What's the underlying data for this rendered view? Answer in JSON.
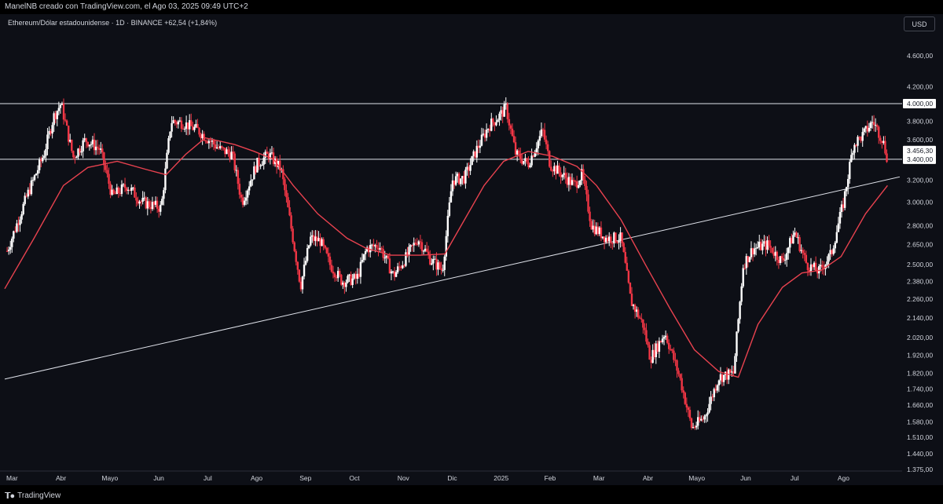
{
  "header": {
    "credit": "ManelNB creado con TradingView.com, el Ago 03, 2025 09:49 UTC+2"
  },
  "symbol": {
    "legend": "Ethereum/Dólar estadounidense · 1D · BINANCE  +62,54 (+1,84%)"
  },
  "currency_button": "USD",
  "footer": {
    "brand": "TradingView"
  },
  "colors": {
    "up": "#ffffff",
    "down": "#f23645",
    "ma": "#e8424f",
    "lines": "#e0e3eb",
    "bg": "#0d0f16"
  },
  "chart_data": {
    "type": "candlestick",
    "title": "",
    "xlabel": "",
    "ylabel": "",
    "x_ticks": [
      {
        "label": "Mar",
        "t": 0.05
      },
      {
        "label": "Abr",
        "t": 1.05
      },
      {
        "label": "Mayo",
        "t": 2.05
      },
      {
        "label": "Jun",
        "t": 3.05
      },
      {
        "label": "Jul",
        "t": 4.05
      },
      {
        "label": "Ago",
        "t": 5.05
      },
      {
        "label": "Sep",
        "t": 6.05
      },
      {
        "label": "Oct",
        "t": 7.05
      },
      {
        "label": "Nov",
        "t": 8.05
      },
      {
        "label": "Dic",
        "t": 9.05
      },
      {
        "label": "2025",
        "t": 10.05
      },
      {
        "label": "Feb",
        "t": 11.05
      },
      {
        "label": "Mar",
        "t": 12.05
      },
      {
        "label": "Abr",
        "t": 13.05
      },
      {
        "label": "Mayo",
        "t": 14.05
      },
      {
        "label": "Jun",
        "t": 15.05
      },
      {
        "label": "Jul",
        "t": 16.05
      },
      {
        "label": "Ago",
        "t": 17.05
      }
    ],
    "y_ticks": [
      4600,
      4200,
      3800,
      3600,
      3200,
      3000,
      2800,
      2650,
      2500,
      2380,
      2260,
      2140,
      2020,
      1920,
      1820,
      1740,
      1660,
      1580,
      1510,
      1440,
      1375
    ],
    "y_tick_labels": [
      "4.600,00",
      "4.200,00",
      "3.800,00",
      "3.600,00",
      "3.200,00",
      "3.000,00",
      "2.800,00",
      "2.650,00",
      "2.500,00",
      "2.380,00",
      "2.260,00",
      "2.140,00",
      "2.020,00",
      "1.920,00",
      "1.820,00",
      "1.740,00",
      "1.660,00",
      "1.580,00",
      "1.510,00",
      "1.440,00",
      "1.375,00"
    ],
    "ylim": [
      1350,
      4900
    ],
    "log_scale": true,
    "horizontal_levels": [
      {
        "value": 4000,
        "label": "4.000,00"
      },
      {
        "value": 3400,
        "label": "3.400,00"
      }
    ],
    "last_price": {
      "value": 3456.3,
      "label": "3.456,30"
    },
    "trendline": {
      "points": [
        {
          "t": -0.1,
          "price": 1790
        },
        {
          "t": 18.2,
          "price": 3230
        }
      ]
    },
    "price_path": [
      {
        "t": -0.1,
        "price": 2550
      },
      {
        "t": 0.35,
        "price": 3050
      },
      {
        "t": 0.7,
        "price": 3450
      },
      {
        "t": 0.9,
        "price": 3850
      },
      {
        "t": 1.05,
        "price": 4000
      },
      {
        "t": 1.3,
        "price": 3420
      },
      {
        "t": 1.55,
        "price": 3600
      },
      {
        "t": 1.85,
        "price": 3500
      },
      {
        "t": 2.1,
        "price": 3050
      },
      {
        "t": 2.4,
        "price": 3150
      },
      {
        "t": 2.7,
        "price": 3000
      },
      {
        "t": 3.1,
        "price": 2950
      },
      {
        "t": 3.3,
        "price": 3800
      },
      {
        "t": 3.55,
        "price": 3780
      },
      {
        "t": 3.85,
        "price": 3700
      },
      {
        "t": 4.3,
        "price": 3500
      },
      {
        "t": 4.55,
        "price": 3450
      },
      {
        "t": 4.75,
        "price": 3000
      },
      {
        "t": 5.05,
        "price": 3350
      },
      {
        "t": 5.3,
        "price": 3450
      },
      {
        "t": 5.55,
        "price": 3300
      },
      {
        "t": 5.75,
        "price": 2800
      },
      {
        "t": 5.95,
        "price": 2350
      },
      {
        "t": 6.15,
        "price": 2700
      },
      {
        "t": 6.35,
        "price": 2680
      },
      {
        "t": 6.55,
        "price": 2500
      },
      {
        "t": 6.8,
        "price": 2380
      },
      {
        "t": 7.1,
        "price": 2400
      },
      {
        "t": 7.3,
        "price": 2620
      },
      {
        "t": 7.55,
        "price": 2650
      },
      {
        "t": 7.85,
        "price": 2420
      },
      {
        "t": 8.1,
        "price": 2550
      },
      {
        "t": 8.35,
        "price": 2700
      },
      {
        "t": 8.6,
        "price": 2540
      },
      {
        "t": 8.85,
        "price": 2460
      },
      {
        "t": 9.05,
        "price": 3200
      },
      {
        "t": 9.3,
        "price": 3220
      },
      {
        "t": 9.55,
        "price": 3500
      },
      {
        "t": 9.8,
        "price": 3750
      },
      {
        "t": 10.0,
        "price": 3850
      },
      {
        "t": 10.15,
        "price": 3950
      },
      {
        "t": 10.35,
        "price": 3450
      },
      {
        "t": 10.6,
        "price": 3350
      },
      {
        "t": 10.9,
        "price": 3700
      },
      {
        "t": 11.05,
        "price": 3350
      },
      {
        "t": 11.3,
        "price": 3250
      },
      {
        "t": 11.55,
        "price": 3150
      },
      {
        "t": 11.7,
        "price": 3250
      },
      {
        "t": 11.9,
        "price": 2800
      },
      {
        "t": 12.2,
        "price": 2700
      },
      {
        "t": 12.5,
        "price": 2700
      },
      {
        "t": 12.7,
        "price": 2250
      },
      {
        "t": 12.95,
        "price": 2100
      },
      {
        "t": 13.1,
        "price": 1900
      },
      {
        "t": 13.4,
        "price": 2050
      },
      {
        "t": 13.7,
        "price": 1800
      },
      {
        "t": 13.95,
        "price": 1550
      },
      {
        "t": 14.2,
        "price": 1600
      },
      {
        "t": 14.5,
        "price": 1800
      },
      {
        "t": 14.8,
        "price": 1820
      },
      {
        "t": 15.0,
        "price": 2500
      },
      {
        "t": 15.2,
        "price": 2620
      },
      {
        "t": 15.5,
        "price": 2650
      },
      {
        "t": 15.8,
        "price": 2520
      },
      {
        "t": 16.05,
        "price": 2750
      },
      {
        "t": 16.3,
        "price": 2500
      },
      {
        "t": 16.55,
        "price": 2450
      },
      {
        "t": 16.8,
        "price": 2580
      },
      {
        "t": 17.05,
        "price": 3000
      },
      {
        "t": 17.25,
        "price": 3550
      },
      {
        "t": 17.45,
        "price": 3650
      },
      {
        "t": 17.65,
        "price": 3800
      },
      {
        "t": 17.85,
        "price": 3600
      },
      {
        "t": 17.95,
        "price": 3400
      }
    ],
    "ma_path": [
      {
        "t": -0.1,
        "price": 2330
      },
      {
        "t": 0.5,
        "price": 2700
      },
      {
        "t": 1.1,
        "price": 3150
      },
      {
        "t": 1.6,
        "price": 3320
      },
      {
        "t": 2.2,
        "price": 3380
      },
      {
        "t": 2.8,
        "price": 3300
      },
      {
        "t": 3.2,
        "price": 3250
      },
      {
        "t": 3.6,
        "price": 3450
      },
      {
        "t": 4.0,
        "price": 3620
      },
      {
        "t": 4.6,
        "price": 3550
      },
      {
        "t": 5.0,
        "price": 3480
      },
      {
        "t": 5.4,
        "price": 3400
      },
      {
        "t": 5.8,
        "price": 3150
      },
      {
        "t": 6.3,
        "price": 2900
      },
      {
        "t": 6.9,
        "price": 2700
      },
      {
        "t": 7.3,
        "price": 2620
      },
      {
        "t": 7.8,
        "price": 2570
      },
      {
        "t": 8.4,
        "price": 2570
      },
      {
        "t": 8.9,
        "price": 2580
      },
      {
        "t": 9.3,
        "price": 2850
      },
      {
        "t": 9.7,
        "price": 3150
      },
      {
        "t": 10.1,
        "price": 3380
      },
      {
        "t": 10.6,
        "price": 3480
      },
      {
        "t": 11.1,
        "price": 3430
      },
      {
        "t": 11.6,
        "price": 3330
      },
      {
        "t": 12.0,
        "price": 3150
      },
      {
        "t": 12.5,
        "price": 2850
      },
      {
        "t": 13.0,
        "price": 2500
      },
      {
        "t": 13.5,
        "price": 2200
      },
      {
        "t": 14.0,
        "price": 1950
      },
      {
        "t": 14.5,
        "price": 1830
      },
      {
        "t": 14.9,
        "price": 1800
      },
      {
        "t": 15.3,
        "price": 2100
      },
      {
        "t": 15.8,
        "price": 2340
      },
      {
        "t": 16.2,
        "price": 2440
      },
      {
        "t": 16.6,
        "price": 2460
      },
      {
        "t": 17.0,
        "price": 2560
      },
      {
        "t": 17.5,
        "price": 2900
      },
      {
        "t": 17.95,
        "price": 3150
      }
    ]
  }
}
